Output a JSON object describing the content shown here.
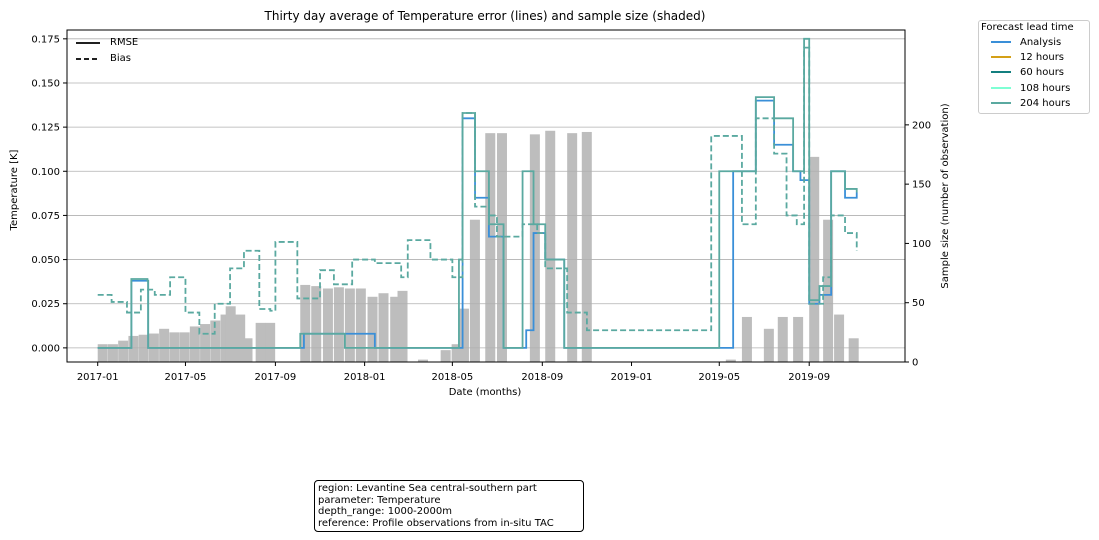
{
  "chart_data": {
    "type": "line",
    "title": "Thirty day average of Temperature error (lines) and sample size (shaded)",
    "xlabel": "Date (months)",
    "ylabel": "Temperature [K]",
    "y2label": "Sample size (number of observation)",
    "ylim": [
      -0.008,
      0.18
    ],
    "y2lim": [
      0,
      280
    ],
    "xlim": [
      "2016-11-20",
      "2020-01-10"
    ],
    "x_ticks": [
      "2017-01",
      "2017-05",
      "2017-09",
      "2018-01",
      "2018-05",
      "2018-09",
      "2019-01",
      "2019-05",
      "2019-09"
    ],
    "y_ticks": [
      0.0,
      0.025,
      0.05,
      0.075,
      0.1,
      0.125,
      0.15,
      0.175
    ],
    "y_tick_labels": [
      "0.000",
      "0.025",
      "0.050",
      "0.075",
      "0.100",
      "0.125",
      "0.150",
      "0.175"
    ],
    "y2_ticks": [
      0,
      50,
      100,
      150,
      200
    ],
    "grid": "horizontal",
    "style_legend": [
      {
        "label": "RMSE",
        "dash": "solid"
      },
      {
        "label": "Bias",
        "dash": "dashed"
      }
    ],
    "legend": {
      "title": "Forecast lead time",
      "placement": "outside-top-right",
      "entries": [
        {
          "label": "Analysis",
          "color": "#3a8fd8"
        },
        {
          "label": "12 hours",
          "color": "#d4a017"
        },
        {
          "label": "60 hours",
          "color": "#137f7f"
        },
        {
          "label": "108 hours",
          "color": "#7fffd4"
        },
        {
          "label": "204 hours",
          "color": "#5aa9a0"
        }
      ]
    },
    "sample_size_bars": [
      {
        "x": "2017-01-01",
        "y": 15
      },
      {
        "x": "2017-01-15",
        "y": 15
      },
      {
        "x": "2017-01-29",
        "y": 18
      },
      {
        "x": "2017-02-12",
        "y": 22
      },
      {
        "x": "2017-02-26",
        "y": 23
      },
      {
        "x": "2017-03-12",
        "y": 24
      },
      {
        "x": "2017-03-26",
        "y": 28
      },
      {
        "x": "2017-04-09",
        "y": 25
      },
      {
        "x": "2017-04-23",
        "y": 25
      },
      {
        "x": "2017-05-07",
        "y": 30
      },
      {
        "x": "2017-05-21",
        "y": 32
      },
      {
        "x": "2017-06-04",
        "y": 35
      },
      {
        "x": "2017-06-18",
        "y": 40
      },
      {
        "x": "2017-06-25",
        "y": 47
      },
      {
        "x": "2017-07-08",
        "y": 40
      },
      {
        "x": "2017-07-18",
        "y": 20
      },
      {
        "x": "2017-08-05",
        "y": 33
      },
      {
        "x": "2017-08-18",
        "y": 33
      },
      {
        "x": "2017-10-05",
        "y": 65
      },
      {
        "x": "2017-10-20",
        "y": 64
      },
      {
        "x": "2017-11-05",
        "y": 62
      },
      {
        "x": "2017-11-20",
        "y": 63
      },
      {
        "x": "2017-12-05",
        "y": 62
      },
      {
        "x": "2017-12-20",
        "y": 62
      },
      {
        "x": "2018-01-05",
        "y": 55
      },
      {
        "x": "2018-01-20",
        "y": 58
      },
      {
        "x": "2018-02-05",
        "y": 55
      },
      {
        "x": "2018-02-15",
        "y": 60
      },
      {
        "x": "2018-03-15",
        "y": 2
      },
      {
        "x": "2018-04-15",
        "y": 10
      },
      {
        "x": "2018-04-30",
        "y": 15
      },
      {
        "x": "2018-05-10",
        "y": 45
      },
      {
        "x": "2018-05-25",
        "y": 120
      },
      {
        "x": "2018-06-15",
        "y": 193
      },
      {
        "x": "2018-07-01",
        "y": 193
      },
      {
        "x": "2018-08-15",
        "y": 192
      },
      {
        "x": "2018-09-05",
        "y": 195
      },
      {
        "x": "2018-10-05",
        "y": 193
      },
      {
        "x": "2018-10-25",
        "y": 194
      },
      {
        "x": "2019-05-10",
        "y": 2
      },
      {
        "x": "2019-06-01",
        "y": 38
      },
      {
        "x": "2019-07-01",
        "y": 28
      },
      {
        "x": "2019-07-20",
        "y": 38
      },
      {
        "x": "2019-08-10",
        "y": 38
      },
      {
        "x": "2019-09-01",
        "y": 173
      },
      {
        "x": "2019-09-20",
        "y": 120
      },
      {
        "x": "2019-10-05",
        "y": 40
      },
      {
        "x": "2019-10-25",
        "y": 20
      }
    ],
    "series": [
      {
        "name": "Analysis",
        "kind": "RMSE",
        "points": [
          [
            "2017-01-01",
            0.0
          ],
          [
            "2017-02-15",
            0.0
          ],
          [
            "2017-02-16",
            0.038
          ],
          [
            "2017-03-10",
            0.038
          ],
          [
            "2017-03-11",
            0.0
          ],
          [
            "2017-10-01",
            0.0
          ],
          [
            "2017-10-10",
            0.008
          ],
          [
            "2017-12-01",
            0.008
          ],
          [
            "2018-01-15",
            0.0
          ],
          [
            "2018-05-10",
            0.0
          ],
          [
            "2018-05-15",
            0.13
          ],
          [
            "2018-06-01",
            0.085
          ],
          [
            "2018-06-20",
            0.063
          ],
          [
            "2018-07-10",
            0.0
          ],
          [
            "2018-08-10",
            0.01
          ],
          [
            "2018-08-20",
            0.065
          ],
          [
            "2018-09-05",
            0.05
          ],
          [
            "2018-10-01",
            0.0
          ],
          [
            "2019-05-10",
            0.0
          ],
          [
            "2019-05-20",
            0.1
          ],
          [
            "2019-06-20",
            0.14
          ],
          [
            "2019-07-15",
            0.115
          ],
          [
            "2019-08-10",
            0.1
          ],
          [
            "2019-08-20",
            0.095
          ],
          [
            "2019-09-01",
            0.025
          ],
          [
            "2019-09-15",
            0.03
          ],
          [
            "2019-10-01",
            0.1
          ],
          [
            "2019-10-20",
            0.085
          ],
          [
            "2019-11-05",
            0.088
          ]
        ]
      },
      {
        "name": "204 hours",
        "kind": "RMSE",
        "points": [
          [
            "2017-01-01",
            0.0
          ],
          [
            "2017-02-15",
            0.0
          ],
          [
            "2017-02-16",
            0.039
          ],
          [
            "2017-03-10",
            0.038
          ],
          [
            "2017-03-11",
            0.0
          ],
          [
            "2017-07-20",
            0.0
          ],
          [
            "2017-10-01",
            0.0
          ],
          [
            "2017-10-05",
            0.008
          ],
          [
            "2017-12-01",
            0.008
          ],
          [
            "2017-12-05",
            0.0
          ],
          [
            "2018-04-25",
            0.0
          ],
          [
            "2018-05-10",
            0.05
          ],
          [
            "2018-05-15",
            0.133
          ],
          [
            "2018-06-01",
            0.1
          ],
          [
            "2018-06-20",
            0.07
          ],
          [
            "2018-07-10",
            0.0
          ],
          [
            "2018-08-05",
            0.1
          ],
          [
            "2018-08-20",
            0.07
          ],
          [
            "2018-09-05",
            0.05
          ],
          [
            "2018-10-01",
            0.0
          ],
          [
            "2019-05-01",
            0.1
          ],
          [
            "2019-06-20",
            0.142
          ],
          [
            "2019-07-15",
            0.13
          ],
          [
            "2019-08-10",
            0.1
          ],
          [
            "2019-08-25",
            0.175
          ],
          [
            "2019-09-01",
            0.027
          ],
          [
            "2019-09-15",
            0.035
          ],
          [
            "2019-10-01",
            0.1
          ],
          [
            "2019-10-20",
            0.09
          ],
          [
            "2019-11-05",
            0.088
          ]
        ]
      },
      {
        "name": "204 hours",
        "kind": "Bias",
        "points": [
          [
            "2017-01-01",
            0.03
          ],
          [
            "2017-01-20",
            0.026
          ],
          [
            "2017-02-10",
            0.02
          ],
          [
            "2017-03-01",
            0.033
          ],
          [
            "2017-03-20",
            0.03
          ],
          [
            "2017-04-10",
            0.04
          ],
          [
            "2017-05-01",
            0.02
          ],
          [
            "2017-05-20",
            0.008
          ],
          [
            "2017-06-10",
            0.025
          ],
          [
            "2017-07-01",
            0.045
          ],
          [
            "2017-07-20",
            0.055
          ],
          [
            "2017-08-10",
            0.022
          ],
          [
            "2017-08-25",
            0.021
          ],
          [
            "2017-09-01",
            0.06
          ],
          [
            "2017-10-01",
            0.028
          ],
          [
            "2017-11-01",
            0.044
          ],
          [
            "2017-11-20",
            0.036
          ],
          [
            "2017-12-15",
            0.05
          ],
          [
            "2018-01-15",
            0.048
          ],
          [
            "2018-02-20",
            0.04
          ],
          [
            "2018-03-01",
            0.061
          ],
          [
            "2018-04-01",
            0.05
          ],
          [
            "2018-05-01",
            0.04
          ],
          [
            "2018-05-15",
            0.133
          ],
          [
            "2018-06-01",
            0.08
          ],
          [
            "2018-06-20",
            0.075
          ],
          [
            "2018-07-01",
            0.063
          ],
          [
            "2018-08-05",
            0.07
          ],
          [
            "2018-08-25",
            0.065
          ],
          [
            "2018-09-05",
            0.045
          ],
          [
            "2018-10-05",
            0.02
          ],
          [
            "2018-11-01",
            0.01
          ],
          [
            "2019-04-20",
            0.12
          ],
          [
            "2019-05-15",
            0.12
          ],
          [
            "2019-06-01",
            0.07
          ],
          [
            "2019-06-20",
            0.13
          ],
          [
            "2019-07-15",
            0.11
          ],
          [
            "2019-08-01",
            0.075
          ],
          [
            "2019-08-15",
            0.07
          ],
          [
            "2019-08-25",
            0.17
          ],
          [
            "2019-09-01",
            0.025
          ],
          [
            "2019-09-20",
            0.04
          ],
          [
            "2019-10-01",
            0.075
          ],
          [
            "2019-10-20",
            0.065
          ],
          [
            "2019-11-05",
            0.055
          ]
        ]
      }
    ]
  },
  "info_box": {
    "lines": [
      "region: Levantine Sea central-southern part",
      "parameter: Temperature",
      "depth_range: 1000-2000m",
      "reference: Profile observations from in-situ TAC"
    ]
  }
}
